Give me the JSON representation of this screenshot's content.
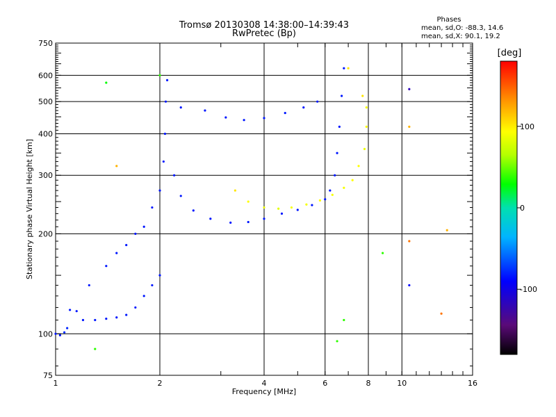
{
  "chart_data": {
    "type": "scatter",
    "title": "Tromsø 20130308 14:38:00–14:39:43",
    "subtitle": "RwPretec (Bp)",
    "xlabel": "Frequency [MHz]",
    "ylabel": "Stationary phase Virtual Height [km]",
    "x_scale": "log",
    "y_scale": "log",
    "xlim": [
      1,
      16
    ],
    "ylim": [
      75,
      750
    ],
    "x_ticks": [
      1,
      2,
      4,
      6,
      8,
      10,
      16
    ],
    "x_tick_labels": [
      "1",
      "2",
      "4",
      "6",
      "8",
      "10",
      "16"
    ],
    "y_ticks": [
      75,
      100,
      200,
      300,
      400,
      500,
      600,
      750
    ],
    "y_tick_labels": [
      "75",
      "100",
      "200",
      "300",
      "400",
      "500",
      "600",
      "750"
    ],
    "grid": true,
    "phases_box": {
      "title": "Phases",
      "line1": "mean, sd,O: -88.3, 14.6",
      "line2": "mean, sd,X:  90.1, 19.2"
    },
    "colorbar": {
      "label": "[deg]",
      "range": [
        -180,
        180
      ],
      "ticks": [
        100,
        0,
        -100
      ],
      "tick_labels": [
        "100",
        "0",
        "-100"
      ],
      "colors": [
        "#000000",
        "#5a0a78",
        "#0000ff",
        "#00b4ff",
        "#00e0b0",
        "#00ff00",
        "#b4ff00",
        "#ffff00",
        "#ff9a00",
        "#ff0000"
      ]
    },
    "series": [
      {
        "points": [
          [
            1.0,
            100,
            -95
          ],
          [
            1.03,
            99,
            -95
          ],
          [
            1.06,
            101,
            -90
          ],
          [
            1.08,
            104,
            -92
          ],
          [
            1.1,
            118,
            -95
          ],
          [
            1.15,
            117,
            -95
          ],
          [
            1.2,
            110,
            -95
          ],
          [
            1.3,
            110,
            -95
          ],
          [
            1.4,
            111,
            -95
          ],
          [
            1.5,
            112,
            -95
          ],
          [
            1.6,
            114,
            -95
          ],
          [
            1.7,
            120,
            -95
          ],
          [
            1.8,
            130,
            -95
          ],
          [
            1.9,
            140,
            -95
          ],
          [
            2.0,
            150,
            -95
          ],
          [
            1.25,
            140,
            -95
          ],
          [
            1.4,
            160,
            -95
          ],
          [
            1.5,
            175,
            -95
          ],
          [
            1.6,
            185,
            -95
          ],
          [
            1.7,
            200,
            -95
          ],
          [
            1.8,
            210,
            -95
          ],
          [
            1.9,
            240,
            -95
          ],
          [
            2.0,
            270,
            -95
          ],
          [
            2.05,
            330,
            -95
          ],
          [
            2.07,
            400,
            -95
          ],
          [
            2.08,
            500,
            -95
          ],
          [
            2.1,
            580,
            -95
          ],
          [
            2.2,
            300,
            -95
          ],
          [
            2.3,
            260,
            -95
          ],
          [
            2.5,
            235,
            -95
          ],
          [
            2.8,
            222,
            -95
          ],
          [
            3.2,
            216,
            -95
          ],
          [
            3.6,
            217,
            -95
          ],
          [
            4.0,
            222,
            -95
          ],
          [
            4.5,
            230,
            -95
          ],
          [
            5.0,
            236,
            -95
          ],
          [
            5.5,
            244,
            -95
          ],
          [
            6.0,
            254,
            -95
          ],
          [
            6.2,
            270,
            -95
          ],
          [
            6.4,
            300,
            -95
          ],
          [
            6.5,
            350,
            -95
          ],
          [
            6.6,
            420,
            -95
          ],
          [
            6.7,
            520,
            -95
          ],
          [
            6.8,
            630,
            -95
          ],
          [
            2.3,
            480,
            -95
          ],
          [
            2.7,
            470,
            -95
          ],
          [
            3.1,
            448,
            -95
          ],
          [
            3.5,
            440,
            -95
          ],
          [
            4.0,
            446,
            -95
          ],
          [
            4.6,
            462,
            -95
          ],
          [
            5.2,
            480,
            -95
          ],
          [
            5.7,
            500,
            -95
          ],
          [
            3.3,
            270,
            110
          ],
          [
            3.6,
            250,
            100
          ],
          [
            4.0,
            240,
            90
          ],
          [
            4.4,
            238,
            85
          ],
          [
            4.8,
            240,
            95
          ],
          [
            5.3,
            245,
            95
          ],
          [
            5.8,
            252,
            100
          ],
          [
            6.3,
            262,
            95
          ],
          [
            6.8,
            275,
            95
          ],
          [
            7.2,
            290,
            100
          ],
          [
            7.5,
            320,
            100
          ],
          [
            7.8,
            360,
            90
          ],
          [
            7.9,
            420,
            100
          ],
          [
            7.9,
            480,
            95
          ],
          [
            7.7,
            520,
            110
          ],
          [
            7.0,
            630,
            110
          ],
          [
            1.5,
            320,
            130
          ],
          [
            2.0,
            600,
            30
          ],
          [
            1.4,
            570,
            20
          ],
          [
            1.3,
            90,
            30
          ],
          [
            6.5,
            95,
            30
          ],
          [
            6.8,
            110,
            30
          ],
          [
            8.8,
            175,
            30
          ],
          [
            10.5,
            545,
            -120
          ],
          [
            10.5,
            420,
            130
          ],
          [
            10.5,
            140,
            -100
          ],
          [
            13.5,
            205,
            130
          ],
          [
            13.0,
            115,
            150
          ],
          [
            10.5,
            190,
            150
          ]
        ]
      }
    ]
  }
}
